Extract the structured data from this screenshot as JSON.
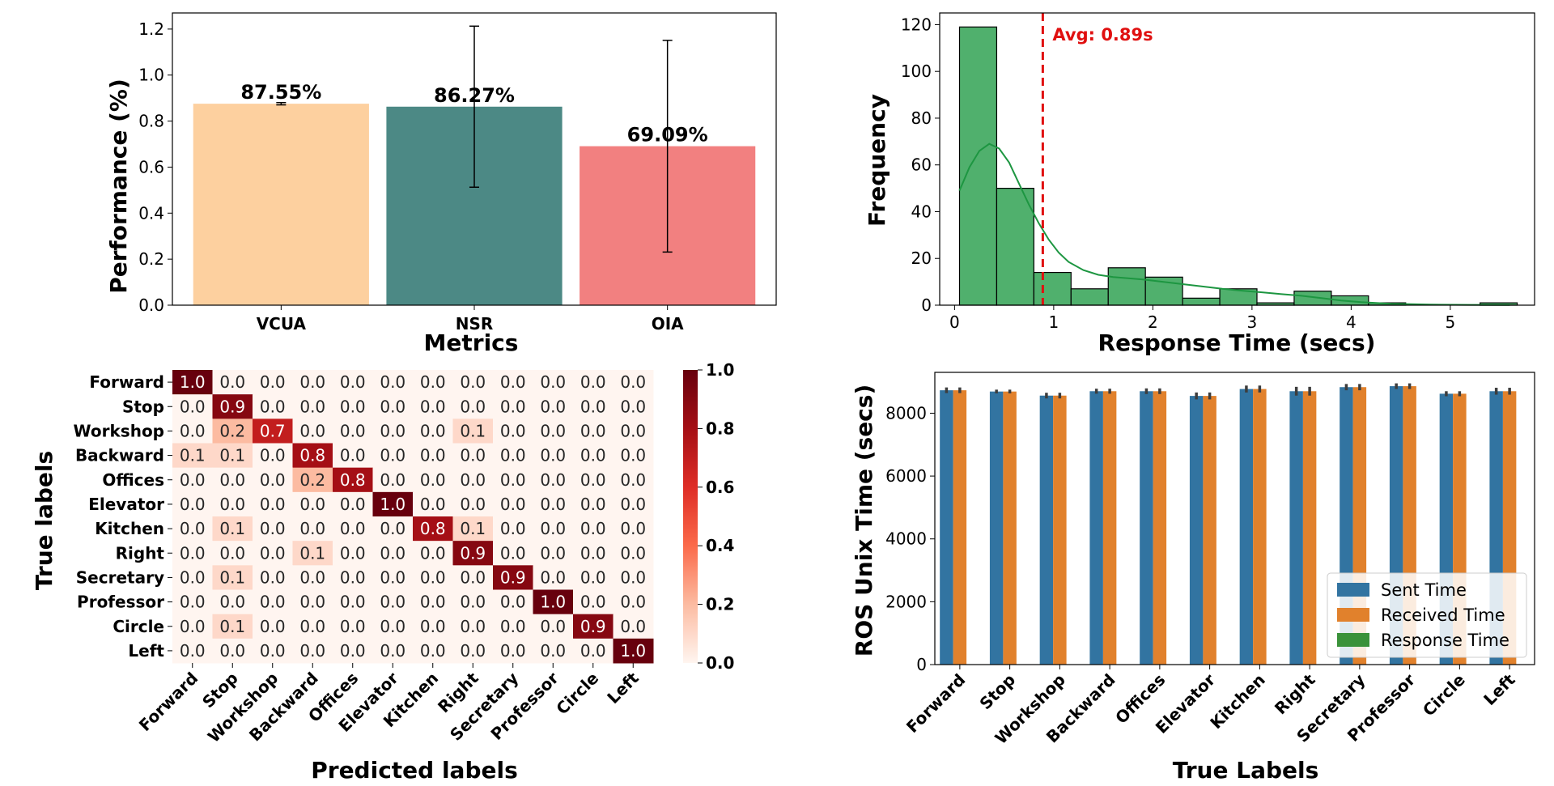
{
  "chart_data": [
    {
      "type": "bar",
      "categories": [
        "VCUA",
        "NSR",
        "OIA"
      ],
      "values": [
        0.8755,
        0.8627,
        0.6909
      ],
      "error": [
        0.005,
        0.35,
        0.46
      ],
      "data_labels": [
        "87.55%",
        "86.27%",
        "69.09%"
      ],
      "colors": [
        "#fdd09f",
        "#4c8985",
        "#f28080"
      ],
      "xlabel": "Metrics",
      "ylabel": "Performance (%)",
      "ylim": [
        0,
        1.27
      ],
      "yticks": [
        "0.0",
        "0.2",
        "0.4",
        "0.6",
        "0.8",
        "1.0",
        "1.2"
      ],
      "ytick_values": [
        0,
        0.2,
        0.4,
        0.6,
        0.8,
        1.0,
        1.2
      ]
    },
    {
      "type": "histogram",
      "bin_width": 0.375,
      "bin_start": 0.05,
      "counts": [
        119,
        50,
        14,
        7,
        16,
        12,
        3,
        7,
        1,
        6,
        4,
        1,
        0,
        0,
        1
      ],
      "kde": [
        [
          0.05,
          49
        ],
        [
          0.15,
          59
        ],
        [
          0.25,
          66
        ],
        [
          0.35,
          69
        ],
        [
          0.45,
          67
        ],
        [
          0.55,
          61
        ],
        [
          0.65,
          52
        ],
        [
          0.75,
          43
        ],
        [
          0.85,
          35
        ],
        [
          0.95,
          28
        ],
        [
          1.05,
          22.5
        ],
        [
          1.15,
          18.5
        ],
        [
          1.3,
          15
        ],
        [
          1.45,
          13
        ],
        [
          1.6,
          12
        ],
        [
          1.75,
          11.5
        ],
        [
          1.9,
          11
        ],
        [
          2.1,
          10
        ],
        [
          2.3,
          9
        ],
        [
          2.5,
          8
        ],
        [
          2.7,
          7
        ],
        [
          2.9,
          6.2
        ],
        [
          3.1,
          5.5
        ],
        [
          3.3,
          4.7
        ],
        [
          3.5,
          4
        ],
        [
          3.7,
          3
        ],
        [
          3.9,
          2
        ],
        [
          4.1,
          1.3
        ],
        [
          4.4,
          0.6
        ],
        [
          4.8,
          0.25
        ],
        [
          5.2,
          0.15
        ],
        [
          5.6,
          0.1
        ]
      ],
      "avg_line": 0.89,
      "avg_label": "Avg: 0.89s",
      "color": "#50b06d",
      "kde_color": "#1d9641",
      "avg_color": "#e01010",
      "xlabel": "Response Time (secs)",
      "ylabel": "Frequency",
      "xlim": [
        -0.15,
        5.85
      ],
      "ylim": [
        0,
        125
      ],
      "xticks": [
        "0",
        "1",
        "2",
        "3",
        "4",
        "5"
      ],
      "xtick_values": [
        0,
        1,
        2,
        3,
        4,
        5
      ],
      "yticks": [
        "0",
        "20",
        "40",
        "60",
        "80",
        "100",
        "120"
      ],
      "ytick_values": [
        0,
        20,
        40,
        60,
        80,
        100,
        120
      ]
    },
    {
      "type": "heatmap",
      "rows": [
        "Forward",
        "Stop",
        "Workshop",
        "Backward",
        "Offices",
        "Elevator",
        "Kitchen",
        "Right",
        "Secretary",
        "Professor",
        "Circle",
        "Left"
      ],
      "cols": [
        "Forward",
        "Stop",
        "Workshop",
        "Backward",
        "Offices",
        "Elevator",
        "Kitchen",
        "Right",
        "Secretary",
        "Professor",
        "Circle",
        "Left"
      ],
      "values": [
        [
          1.0,
          0.0,
          0.0,
          0.0,
          0.0,
          0.0,
          0.0,
          0.0,
          0.0,
          0.0,
          0.0,
          0.0
        ],
        [
          0.0,
          0.9,
          0.0,
          0.0,
          0.0,
          0.0,
          0.0,
          0.0,
          0.0,
          0.0,
          0.0,
          0.0
        ],
        [
          0.0,
          0.2,
          0.7,
          0.0,
          0.0,
          0.0,
          0.0,
          0.1,
          0.0,
          0.0,
          0.0,
          0.0
        ],
        [
          0.1,
          0.1,
          0.0,
          0.8,
          0.0,
          0.0,
          0.0,
          0.0,
          0.0,
          0.0,
          0.0,
          0.0
        ],
        [
          0.0,
          0.0,
          0.0,
          0.2,
          0.8,
          0.0,
          0.0,
          0.0,
          0.0,
          0.0,
          0.0,
          0.0
        ],
        [
          0.0,
          0.0,
          0.0,
          0.0,
          0.0,
          1.0,
          0.0,
          0.0,
          0.0,
          0.0,
          0.0,
          0.0
        ],
        [
          0.0,
          0.1,
          0.0,
          0.0,
          0.0,
          0.0,
          0.8,
          0.1,
          0.0,
          0.0,
          0.0,
          0.0
        ],
        [
          0.0,
          0.0,
          0.0,
          0.1,
          0.0,
          0.0,
          0.0,
          0.9,
          0.0,
          0.0,
          0.0,
          0.0
        ],
        [
          0.0,
          0.1,
          0.0,
          0.0,
          0.0,
          0.0,
          0.0,
          0.0,
          0.9,
          0.0,
          0.0,
          0.0
        ],
        [
          0.0,
          0.0,
          0.0,
          0.0,
          0.0,
          0.0,
          0.0,
          0.0,
          0.0,
          1.0,
          0.0,
          0.0
        ],
        [
          0.0,
          0.1,
          0.0,
          0.0,
          0.0,
          0.0,
          0.0,
          0.0,
          0.0,
          0.0,
          0.9,
          0.0
        ],
        [
          0.0,
          0.0,
          0.0,
          0.0,
          0.0,
          0.0,
          0.0,
          0.0,
          0.0,
          0.0,
          0.0,
          1.0
        ]
      ],
      "xlabel": "Predicted labels",
      "ylabel": "True labels",
      "colorbar_ticks": [
        "0.0",
        "0.2",
        "0.4",
        "0.6",
        "0.8",
        "1.0"
      ],
      "colorbar_tick_values": [
        0,
        0.2,
        0.4,
        0.6,
        0.8,
        1.0
      ],
      "colormap": "Reds"
    },
    {
      "type": "bar",
      "grouped": true,
      "categories": [
        "Forward",
        "Stop",
        "Workshop",
        "Backward",
        "Offices",
        "Elevator",
        "Kitchen",
        "Right",
        "Secretary",
        "Professor",
        "Circle",
        "Left"
      ],
      "series": [
        {
          "name": "Sent Time",
          "color": "#3274a1",
          "values": [
            8730,
            8690,
            8560,
            8700,
            8700,
            8550,
            8770,
            8700,
            8830,
            8860,
            8620,
            8700
          ],
          "error": [
            90,
            60,
            90,
            80,
            90,
            110,
            110,
            140,
            100,
            90,
            80,
            110
          ]
        },
        {
          "name": "Received Time",
          "color": "#e1812c",
          "values": [
            8730,
            8690,
            8560,
            8700,
            8700,
            8550,
            8770,
            8700,
            8830,
            8860,
            8620,
            8700
          ],
          "error": [
            90,
            60,
            90,
            80,
            90,
            110,
            110,
            140,
            100,
            90,
            80,
            110
          ]
        },
        {
          "name": "Response Time",
          "color": "#3a923a",
          "values": [
            1,
            1,
            1,
            1,
            1,
            1,
            1,
            1,
            1,
            1,
            1,
            1
          ],
          "error": [
            0,
            0,
            0,
            0,
            0,
            0,
            0,
            0,
            0,
            0,
            0,
            0
          ]
        }
      ],
      "xlabel": "True Labels",
      "ylabel": "ROS Unix Time (secs)",
      "ylim": [
        0,
        9300
      ],
      "yticks": [
        "0",
        "2000",
        "4000",
        "6000",
        "8000"
      ],
      "ytick_values": [
        0,
        2000,
        4000,
        6000,
        8000
      ],
      "legend_position": "lower-right"
    }
  ]
}
